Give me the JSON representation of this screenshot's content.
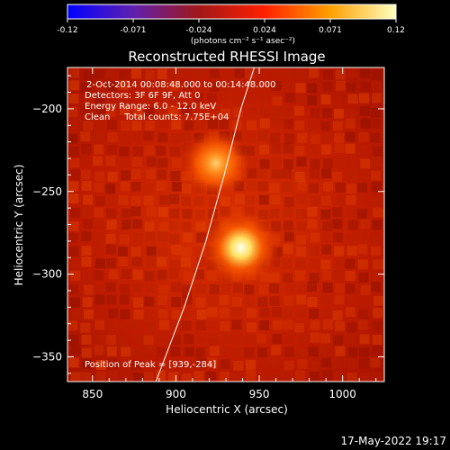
{
  "chart_data": {
    "type": "heatmap",
    "title": "Reconstructed RHESSI Image",
    "xlabel": "Heliocentric X (arcsec)",
    "ylabel": "Heliocentric Y (arcsec)",
    "xlim": [
      835,
      1025
    ],
    "ylim": [
      -365,
      -175
    ],
    "xticks": [
      850,
      900,
      950,
      1000
    ],
    "yticks": [
      -350,
      -300,
      -250,
      -200
    ],
    "colorbar": {
      "range": [
        -0.12,
        0.12
      ],
      "ticks": [
        "-0.12",
        "-0.071",
        "-0.024",
        "0.024",
        "0.071",
        "0.12"
      ],
      "label": "(photons cm⁻² s⁻¹ asec⁻²)",
      "colormap": [
        "#0000ff",
        "#6020b0",
        "#a01818",
        "#ff2000",
        "#ffa000",
        "#ffffc0"
      ]
    },
    "annotations": {
      "time_range": "2-Oct-2014 00:08:48.000 to 00:14:48.000",
      "detectors": "Detectors: 3F 6F 9F, Att 0",
      "energy": "Energy Range: 6.0 - 12.0 keV",
      "clean": "Clean     Total counts: 7.75E+04",
      "peak": "Position of Peak = [939,-284]"
    },
    "sources": [
      {
        "x": 939,
        "y": -284,
        "intensity": 1.0,
        "width": 9
      },
      {
        "x": 924,
        "y": -233,
        "intensity": 0.55,
        "width": 8
      }
    ],
    "limb_curve": [
      [
        888,
        -365
      ],
      [
        905,
        -320
      ],
      [
        918,
        -280
      ],
      [
        929,
        -240
      ],
      [
        939,
        -200
      ],
      [
        947,
        -175
      ]
    ]
  },
  "datestamp": "17-May-2022 19:17"
}
